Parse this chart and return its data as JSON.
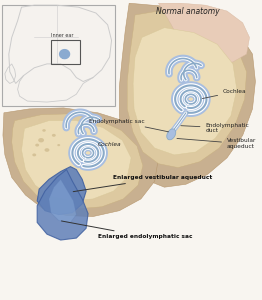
{
  "bg_color": "#f8f5f0",
  "title_normal": "Normal anatomy",
  "label_inner_ear": "Inner ear",
  "label_cochlea_top": "Cochlea",
  "label_cochlea_bottom": "Cochlea",
  "label_endo_sac": "Endolymphatic sac",
  "label_endo_duct": "Endolymphatic\nduct",
  "label_vest_aq": "Vestibular\naqueduct",
  "label_enlarged_vest": "Enlarged vestibular aqueduct",
  "label_enlarged_endo": "Enlarged endolymphatic sac",
  "bone_outer": "#c8a87a",
  "bone_inner": "#ddc99a",
  "bone_light": "#ecddb0",
  "fluid_fill": "#a8bee0",
  "fluid_mid": "#8aaac8",
  "fluid_dark": "#6888b8",
  "fluid_enlarged": "#6080b8",
  "text_color": "#222222",
  "line_color": "#444444",
  "inset_bg": "#f8f8f8",
  "inset_border": "#999999"
}
